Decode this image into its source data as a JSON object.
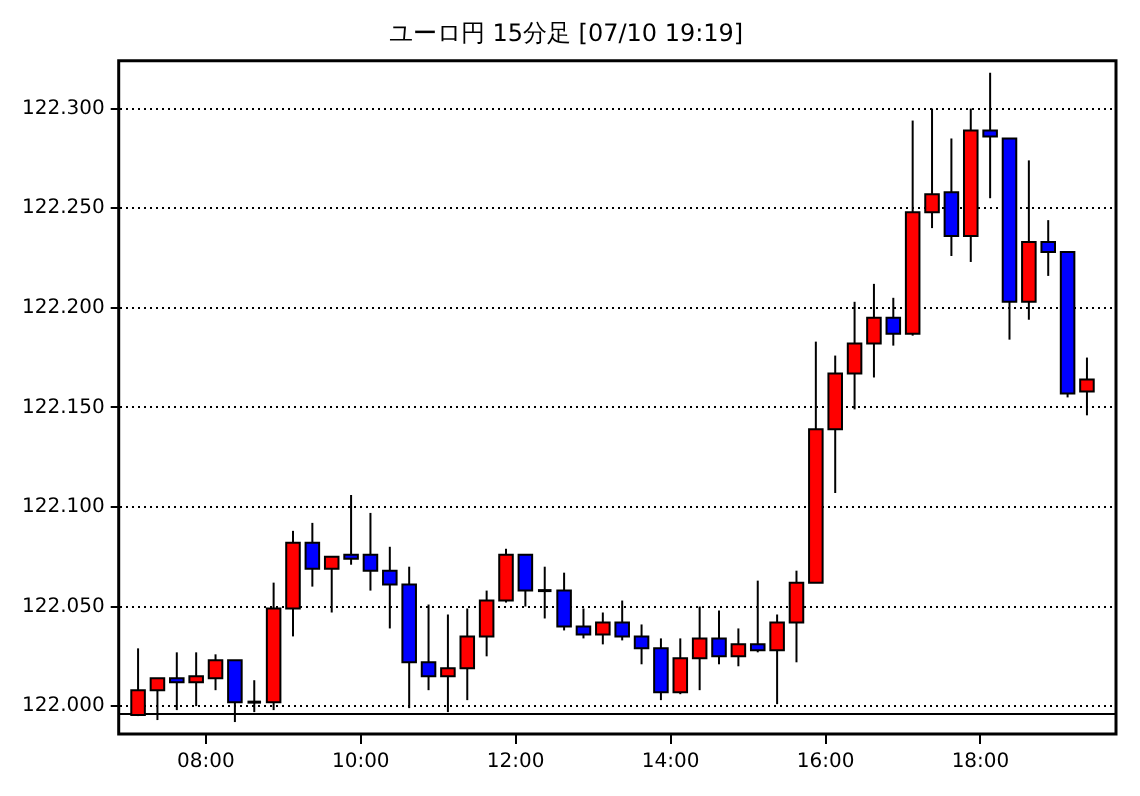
{
  "chart_data": {
    "type": "candlestick",
    "title": "ユーロ円 15分足 [07/10 19:19]",
    "x": [
      7.125,
      7.375,
      7.625,
      7.875,
      8.125,
      8.375,
      8.625,
      8.875,
      9.125,
      9.375,
      9.625,
      9.875,
      10.125,
      10.375,
      10.625,
      10.875,
      11.125,
      11.375,
      11.625,
      11.875,
      12.125,
      12.375,
      12.625,
      12.875,
      13.125,
      13.375,
      13.625,
      13.875,
      14.125,
      14.375,
      14.625,
      14.875,
      15.125,
      15.375,
      15.625,
      15.875,
      16.125,
      16.375,
      16.625,
      16.875,
      17.125,
      17.375,
      17.625,
      17.875,
      18.125,
      18.375,
      18.625,
      18.875,
      19.125,
      19.375
    ],
    "ohlc": [
      [
        121.9955,
        122.029,
        121.995,
        122.008
      ],
      [
        122.008,
        122.014,
        121.993,
        122.014
      ],
      [
        122.014,
        122.027,
        121.998,
        122.012
      ],
      [
        122.012,
        122.027,
        122.0,
        122.015
      ],
      [
        122.014,
        122.026,
        122.008,
        122.023
      ],
      [
        122.023,
        122.023,
        121.992,
        122.002
      ],
      [
        122.002,
        122.013,
        121.997,
        122.002
      ],
      [
        122.002,
        122.062,
        121.998,
        122.049
      ],
      [
        122.049,
        122.088,
        122.035,
        122.082
      ],
      [
        122.082,
        122.092,
        122.06,
        122.069
      ],
      [
        122.069,
        122.075,
        122.047,
        122.075
      ],
      [
        122.076,
        122.106,
        122.071,
        122.075
      ],
      [
        122.076,
        122.097,
        122.058,
        122.068
      ],
      [
        122.068,
        122.08,
        122.039,
        122.061
      ],
      [
        122.061,
        122.07,
        121.999,
        122.022
      ],
      [
        122.022,
        122.051,
        122.008,
        122.015
      ],
      [
        122.015,
        122.046,
        121.997,
        122.019
      ],
      [
        122.019,
        122.049,
        122.003,
        122.035
      ],
      [
        122.035,
        122.058,
        122.025,
        122.053
      ],
      [
        122.053,
        122.079,
        122.052,
        122.076
      ],
      [
        122.076,
        122.076,
        122.05,
        122.058
      ],
      [
        122.058,
        122.07,
        122.044,
        122.058
      ],
      [
        122.058,
        122.067,
        122.038,
        122.04
      ],
      [
        122.04,
        122.049,
        122.034,
        122.036
      ],
      [
        122.036,
        122.047,
        122.031,
        122.042
      ],
      [
        122.042,
        122.053,
        122.033,
        122.035
      ],
      [
        122.035,
        122.041,
        122.021,
        122.029
      ],
      [
        122.029,
        122.034,
        122.003,
        122.007
      ],
      [
        122.007,
        122.034,
        122.006,
        122.024
      ],
      [
        122.024,
        122.05,
        122.008,
        122.034
      ],
      [
        122.034,
        122.048,
        122.021,
        122.025
      ],
      [
        122.025,
        122.039,
        122.02,
        122.031
      ],
      [
        122.031,
        122.063,
        122.027,
        122.028
      ],
      [
        122.028,
        122.046,
        122.001,
        122.042
      ],
      [
        122.042,
        122.068,
        122.022,
        122.062
      ],
      [
        122.062,
        122.183,
        122.062,
        122.139
      ],
      [
        122.139,
        122.176,
        122.107,
        122.167
      ],
      [
        122.167,
        122.203,
        122.149,
        122.182
      ],
      [
        122.182,
        122.212,
        122.165,
        122.195
      ],
      [
        122.195,
        122.205,
        122.181,
        122.187
      ],
      [
        122.187,
        122.294,
        122.186,
        122.248
      ],
      [
        122.248,
        122.3,
        122.24,
        122.257
      ],
      [
        122.258,
        122.285,
        122.226,
        122.236
      ],
      [
        122.236,
        122.3,
        122.223,
        122.289
      ],
      [
        122.289,
        122.318,
        122.255,
        122.286
      ],
      [
        122.285,
        122.285,
        122.184,
        122.203
      ],
      [
        122.203,
        122.274,
        122.194,
        122.233
      ],
      [
        122.233,
        122.244,
        122.216,
        122.228
      ],
      [
        122.228,
        122.228,
        122.155,
        122.157
      ],
      [
        122.158,
        122.175,
        122.146,
        122.164
      ]
    ],
    "colors": [
      "#ff0000",
      "#ff0000",
      "#0000ff",
      "#ff0000",
      "#ff0000",
      "#0000ff",
      "#000000",
      "#ff0000",
      "#ff0000",
      "#0000ff",
      "#ff0000",
      "#0000ff",
      "#0000ff",
      "#0000ff",
      "#0000ff",
      "#0000ff",
      "#ff0000",
      "#ff0000",
      "#ff0000",
      "#ff0000",
      "#0000ff",
      "#000000",
      "#0000ff",
      "#0000ff",
      "#ff0000",
      "#0000ff",
      "#0000ff",
      "#0000ff",
      "#ff0000",
      "#ff0000",
      "#0000ff",
      "#ff0000",
      "#0000ff",
      "#ff0000",
      "#ff0000",
      "#ff0000",
      "#ff0000",
      "#ff0000",
      "#ff0000",
      "#0000ff",
      "#ff0000",
      "#ff0000",
      "#0000ff",
      "#ff0000",
      "#0000ff",
      "#0000ff",
      "#ff0000",
      "#0000ff",
      "#0000ff",
      "#ff0000"
    ],
    "xlim": [
      6.875,
      19.75
    ],
    "xticks": [
      {
        "value": 8,
        "label": "08:00"
      },
      {
        "value": 10,
        "label": "10:00"
      },
      {
        "value": 12,
        "label": "12:00"
      },
      {
        "value": 14,
        "label": "14:00"
      },
      {
        "value": 16,
        "label": "16:00"
      },
      {
        "value": 18,
        "label": "18:00"
      }
    ],
    "ylim": [
      121.986,
      122.324
    ],
    "yticks": [
      {
        "value": 122,
        "label": "122.000"
      },
      {
        "value": 122.05,
        "label": "122.050"
      },
      {
        "value": 122.1,
        "label": "122.100"
      },
      {
        "value": 122.15,
        "label": "122.150"
      },
      {
        "value": 122.2,
        "label": "122.200"
      },
      {
        "value": 122.25,
        "label": "122.250"
      },
      {
        "value": 122.3,
        "label": "122.300"
      }
    ],
    "ref_lines": [
      {
        "axis": "y",
        "value": 121.996,
        "color": "#000000",
        "line_style": "solid"
      }
    ],
    "grid": "y",
    "legend": false
  }
}
